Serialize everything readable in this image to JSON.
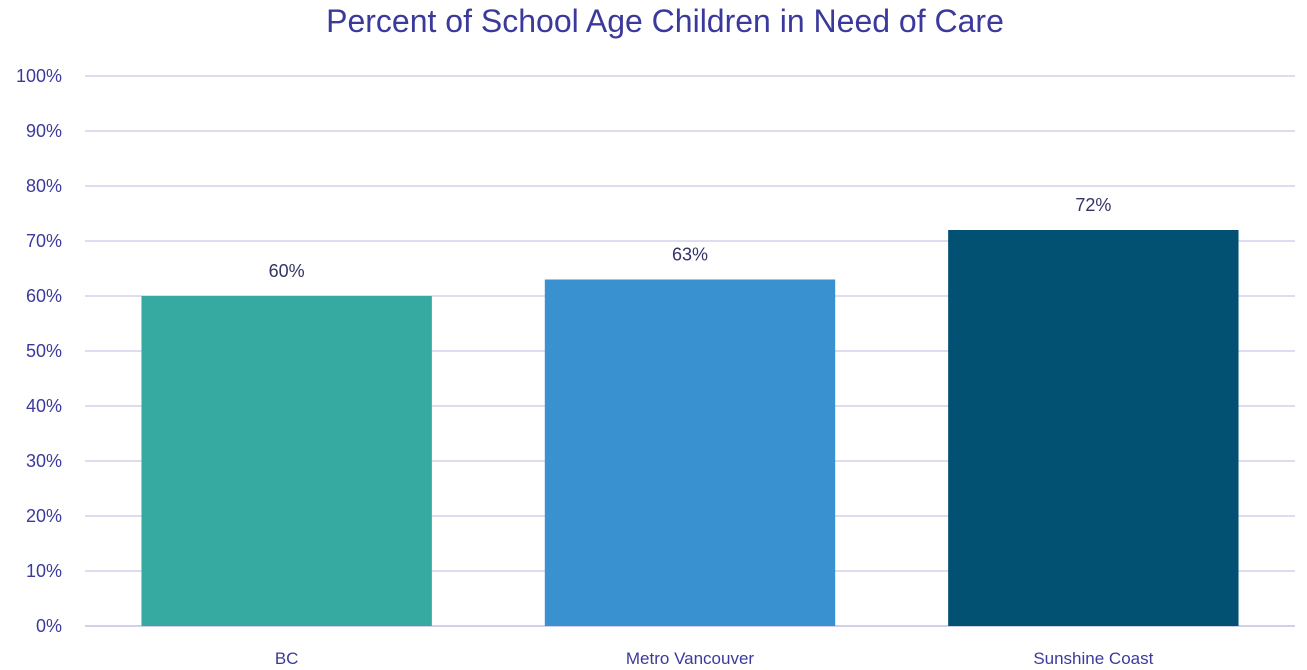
{
  "chart_data": {
    "type": "bar",
    "title": "Percent of School Age Children in Need of Care",
    "categories": [
      "BC",
      "Metro Vancouver",
      "Sunshine Coast"
    ],
    "values": [
      60,
      63,
      72
    ],
    "value_labels": [
      "60%",
      "63%",
      "72%"
    ],
    "bar_colors": [
      "#36aaa1",
      "#3a91cf",
      "#025172"
    ],
    "ylim": [
      0,
      100
    ],
    "yticks": [
      0,
      10,
      20,
      30,
      40,
      50,
      60,
      70,
      80,
      90,
      100
    ],
    "ytick_labels": [
      "0%",
      "10%",
      "20%",
      "30%",
      "40%",
      "50%",
      "60%",
      "70%",
      "80%",
      "90%",
      "100%"
    ],
    "xlabel": "",
    "ylabel": "",
    "grid": true,
    "legend": "none"
  },
  "colors": {
    "text": "#3b3a9c",
    "gridline": "#c9c8e8",
    "axis": "#b5b4e0"
  }
}
